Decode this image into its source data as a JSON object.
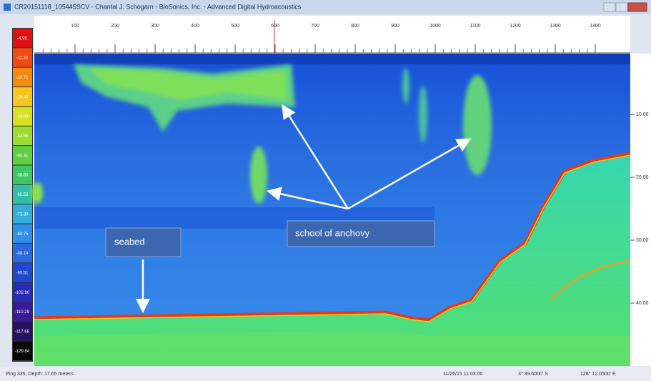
{
  "window": {
    "title": "CR20151118_105445SCV - Chantal J. Schogarn - BioSonics, Inc. - Advanced Digital Hydroacoustics"
  },
  "ruler": {
    "ticks": [
      "100",
      "200",
      "300",
      "400",
      "500",
      "600",
      "700",
      "800",
      "900",
      "1000",
      "1100",
      "1200",
      "1300",
      "1400"
    ]
  },
  "color_scale": [
    "-4.95",
    "-12.33",
    "-20.71",
    "-28.44",
    "-36.08",
    "-44.85",
    "-50.31",
    "-58.56",
    "-65.55",
    "-73.30",
    "-80.75",
    "-88.14",
    "-95.51",
    "-102.90",
    "-110.29",
    "-117.68",
    "-129.84"
  ],
  "depth_labels": [
    "10.00",
    "20.00",
    "30.00",
    "40.00"
  ],
  "annotations": {
    "seabed": "seabed",
    "school": "school of anchovy"
  },
  "status": {
    "ping": "Ping 325, Depth: 17.65 meters",
    "time": "11/26/15 11:03:00",
    "latitude": "3° 39.6000' S",
    "longitude": "128° 12.0500' E"
  }
}
